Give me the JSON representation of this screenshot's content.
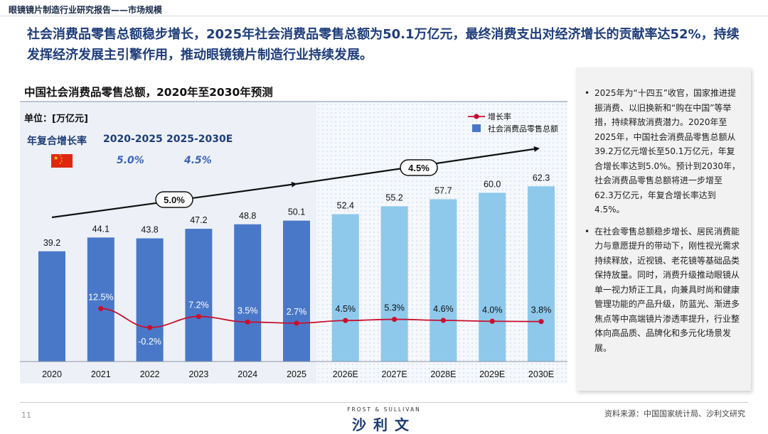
{
  "header": {
    "report_title": "眼镜镜片制造行业研究报告——市场规模",
    "headline": "社会消费品零售总额稳步增长，2025年社会消费品零售总额为50.1万亿元，最终消费支出对经济增长的贡献率达52%，持续发挥经济发展主引擎作用，推动眼镜镜片制造行业持续发展。"
  },
  "cagr": {
    "label": "年复合增长率",
    "period1": "2020-2025",
    "period2": "2025-2030E",
    "value1": "5.0%",
    "value2": "4.5%",
    "arrow1_label": "5.0%",
    "arrow2_label": "4.5%"
  },
  "chart_data": {
    "type": "bar",
    "title": "中国社会消费品零售总额，2020年至2030年预测",
    "unit_label": "单位：[万亿元]",
    "categories": [
      "2020",
      "2021",
      "2022",
      "2023",
      "2024",
      "2025",
      "2026E",
      "2027E",
      "2028E",
      "2029E",
      "2030E"
    ],
    "series": [
      {
        "name": "社会消费品零售总额",
        "type": "bar",
        "values": [
          39.2,
          44.1,
          43.8,
          47.2,
          48.8,
          50.1,
          52.4,
          55.2,
          57.7,
          60.0,
          62.3
        ],
        "labels": [
          "39.2",
          "44.1",
          "43.8",
          "47.2",
          "48.8",
          "50.1",
          "52.4",
          "55.2",
          "57.7",
          "60.0",
          "62.3"
        ]
      },
      {
        "name": "增长率",
        "type": "line",
        "values": [
          null,
          12.5,
          -0.2,
          7.2,
          3.5,
          2.7,
          4.5,
          5.3,
          4.6,
          4.0,
          3.8
        ],
        "labels": [
          "",
          "12.5%",
          "-0.2%",
          "7.2%",
          "3.5%",
          "2.7%",
          "4.5%",
          "5.3%",
          "4.6%",
          "4.0%",
          "3.8%"
        ]
      }
    ],
    "legend": [
      "增长率",
      "社会消费品零售总额"
    ],
    "legend_position": "top-right",
    "colors": {
      "actual_bar": "#4a78c9",
      "forecast_bar": "#8ec9ec",
      "line": "#c8102e",
      "cagr_arrow": "#111111"
    }
  },
  "side_panel": {
    "bullets": [
      "2025年为“十四五”收官，国家推进提振消费、以旧换新和“购在中国”等举措，持续释放消费潜力。2020年至2025年，中国社会消费品零售总额从39.2万亿元增长至50.1万亿元，年复合增长率达到5.0%。预计到2030年，社会消费品零售总额将进一步增至62.3万亿元，年复合增长率达到4.5%。",
      "在社会零售总额稳步增长、居民消费能力与意愿提升的带动下，刚性视光需求持续释放，近视镜、老花镜等基础品类保持放量。同时，消费升级推动眼镜从单一视力矫正工具，向兼具时尚和健康管理功能的产品升级，防蓝光、渐进多焦点等中高端镜片渗透率提升，行业整体向高品质、品牌化和多元化场景发展。"
    ]
  },
  "footer": {
    "page_number": "11",
    "brand_english": "FROST & SULLIVAN",
    "brand_chinese": "沙利文",
    "source": "资料来源：中国国家统计局、沙利文研究"
  }
}
